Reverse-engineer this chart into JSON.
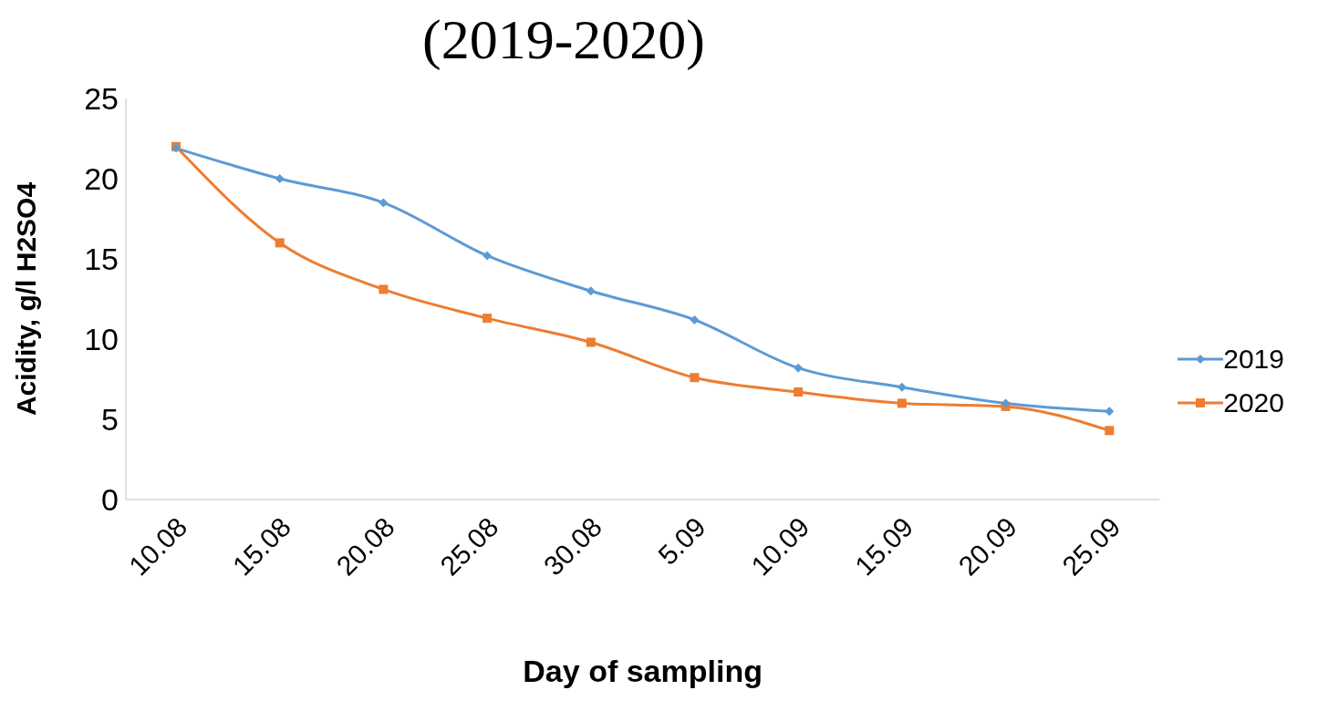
{
  "chart_data": {
    "type": "line",
    "title": "(2019-2020)",
    "xlabel": "Day of sampling",
    "ylabel": "Acidity, g/l H2SO4",
    "categories": [
      "10.08",
      "15.08",
      "20.08",
      "25.08",
      "30.08",
      "5.09",
      "10.09",
      "15.09",
      "20.09",
      "25.09"
    ],
    "series": [
      {
        "name": "2019",
        "color": "#5b9bd5",
        "marker": "diamond",
        "values": [
          21.9,
          20.0,
          18.5,
          15.2,
          13.0,
          11.2,
          8.2,
          7.0,
          6.0,
          5.5
        ]
      },
      {
        "name": "2020",
        "color": "#ed7d31",
        "marker": "square",
        "values": [
          22.0,
          16.0,
          13.1,
          11.3,
          9.8,
          7.6,
          6.7,
          6.0,
          5.8,
          4.3
        ]
      }
    ],
    "ylim": [
      0,
      25
    ],
    "yticks": [
      0,
      5,
      10,
      15,
      20,
      25
    ],
    "grid": false,
    "legend": "right"
  }
}
